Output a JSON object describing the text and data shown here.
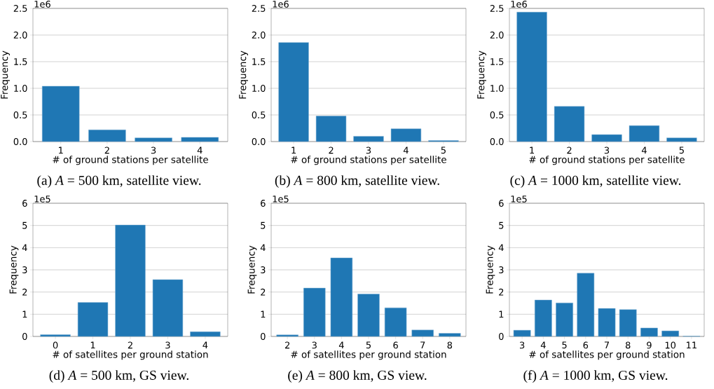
{
  "chart_data": [
    {
      "type": "bar",
      "title": "(a) *A* = 500 km, satellite view.",
      "xlabel": "# of ground stations per satellite",
      "ylabel": "Frequency",
      "annotations": [
        "1e6"
      ],
      "categories": [
        "1",
        "2",
        "3",
        "4"
      ],
      "values": [
        1.04,
        0.22,
        0.07,
        0.08
      ],
      "color": "#1f77b4",
      "ylim": [
        0,
        2.5
      ],
      "yticks": [
        {
          "value": 0,
          "label": "0.0"
        },
        0.5,
        {
          "value": 1,
          "label": "1.0"
        },
        1.5,
        {
          "value": 2,
          "label": "2.0"
        },
        2.5
      ],
      "grid": "y"
    },
    {
      "type": "bar",
      "title": "(b) *A* = 800 km, satellite view.",
      "xlabel": "# of ground stations per satellite",
      "ylabel": "Frequency",
      "annotations": [
        "1e6"
      ],
      "categories": [
        "1",
        "2",
        "3",
        "4",
        "5"
      ],
      "values": [
        1.86,
        0.48,
        0.1,
        0.24,
        0.02
      ],
      "color": "#1f77b4",
      "ylim": [
        0,
        2.5
      ],
      "yticks": [
        {
          "value": 0,
          "label": "0.0"
        },
        0.5,
        {
          "value": 1,
          "label": "1.0"
        },
        1.5,
        {
          "value": 2,
          "label": "2.0"
        },
        2.5
      ],
      "grid": "y"
    },
    {
      "type": "bar",
      "title": "(c) *A* = 1000 km, satellite view.",
      "xlabel": "# of ground stations per satellite",
      "ylabel": "Frequency",
      "annotations": [
        "1e6"
      ],
      "categories": [
        "1",
        "2",
        "3",
        "4",
        "5"
      ],
      "values": [
        2.43,
        0.66,
        0.13,
        0.3,
        0.07
      ],
      "color": "#1f77b4",
      "ylim": [
        0,
        2.5
      ],
      "yticks": [
        {
          "value": 0,
          "label": "0.0"
        },
        0.5,
        {
          "value": 1,
          "label": "1.0"
        },
        1.5,
        {
          "value": 2,
          "label": "2.0"
        },
        2.5
      ],
      "grid": "y"
    },
    {
      "type": "bar",
      "title": "(d) *A* = 500 km, GS view.",
      "xlabel": "# of satellites per ground station",
      "ylabel": "Frequency",
      "annotations": [
        "1e5"
      ],
      "categories": [
        "0",
        "1",
        "2",
        "3",
        "4"
      ],
      "values": [
        0.08,
        1.53,
        5.02,
        2.56,
        0.21
      ],
      "color": "#1f77b4",
      "ylim": [
        0,
        6
      ],
      "yticks": [
        0,
        1,
        2,
        3,
        4,
        5,
        6
      ],
      "grid": "y"
    },
    {
      "type": "bar",
      "title": "(e) *A* = 800 km, GS view.",
      "xlabel": "# of satellites per ground station",
      "ylabel": "Frequency",
      "annotations": [
        "1e5"
      ],
      "categories": [
        "2",
        "3",
        "4",
        "5",
        "6",
        "7",
        "8"
      ],
      "values": [
        0.07,
        2.18,
        3.54,
        1.91,
        1.29,
        0.29,
        0.14
      ],
      "color": "#1f77b4",
      "ylim": [
        0,
        6
      ],
      "yticks": [
        0,
        1,
        2,
        3,
        4,
        5,
        6
      ],
      "grid": "y"
    },
    {
      "type": "bar",
      "title": "(f) *A* = 1000 km, GS view.",
      "xlabel": "# of satellites per ground station",
      "ylabel": "Frequency",
      "annotations": [
        "1e5"
      ],
      "categories": [
        "3",
        "4",
        "5",
        "6",
        "7",
        "8",
        "9",
        "10",
        "11"
      ],
      "values": [
        0.28,
        1.64,
        1.51,
        2.85,
        1.26,
        1.21,
        0.38,
        0.25,
        0.01
      ],
      "color": "#1f77b4",
      "ylim": [
        0,
        6
      ],
      "yticks": [
        0,
        1,
        2,
        3,
        4,
        5,
        6
      ],
      "grid": "y"
    }
  ]
}
